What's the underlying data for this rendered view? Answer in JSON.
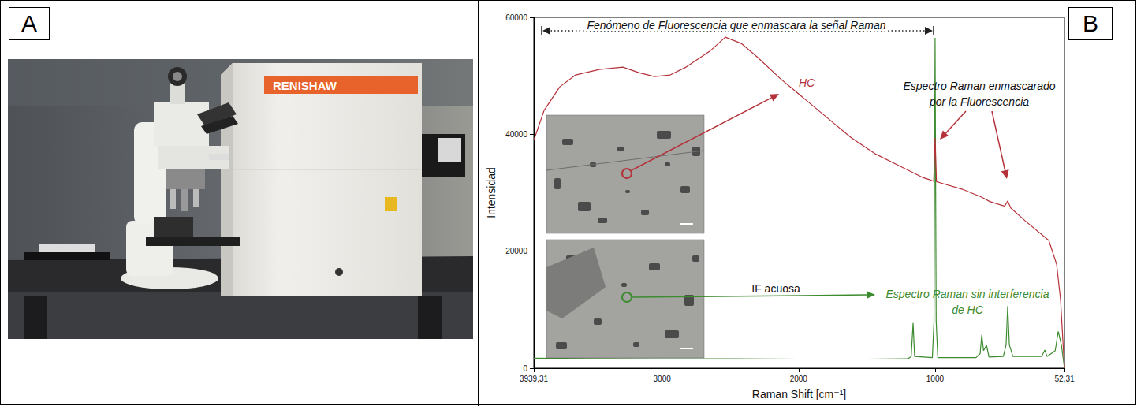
{
  "panel_labels": [
    "A",
    "B"
  ],
  "photo": {
    "brand": "RENISHAW"
  },
  "chart_data": {
    "type": "line",
    "x_label": "Raman Shift [cm⁻¹]",
    "y_label": "Intensidad",
    "xlim": [
      3939.31,
      52.31
    ],
    "xticks": [
      {
        "value": 3939.31,
        "label": "3939,31"
      },
      3000,
      2000,
      1000,
      {
        "value": 52.31,
        "label": "52,31"
      }
    ],
    "ylim": [
      0,
      60000
    ],
    "yticks": [
      0,
      20000,
      40000,
      60000
    ],
    "grid": false,
    "series": [
      {
        "name": "HC",
        "color": "#b5323a",
        "x": [
          3939.31,
          3864,
          3749,
          3633,
          3460,
          3287,
          3171,
          3056,
          2940,
          2824,
          2651,
          2536,
          2420,
          2305,
          2131,
          1958,
          1785,
          1612,
          1439,
          1266,
          1092,
          1035,
          1010,
          1000,
          990,
          960,
          800,
          660,
          600,
          490,
          468,
          446,
          340,
          167,
          110,
          81,
          52.31
        ],
        "values": [
          38960,
          44080,
          48120,
          50150,
          51090,
          51490,
          50550,
          49880,
          50150,
          51490,
          54190,
          56610,
          55540,
          53250,
          49470,
          46100,
          42730,
          39360,
          36660,
          34640,
          32620,
          32200,
          31950,
          39360,
          31900,
          31680,
          30600,
          29250,
          28500,
          27700,
          28600,
          27400,
          25200,
          21840,
          17790,
          11730,
          0
        ]
      },
      {
        "name": "IF acuosa",
        "color": "#3d8b2f",
        "x": [
          3939.31,
          3500,
          3000,
          2500,
          2000,
          1500,
          1200,
          1175,
          1161,
          1150,
          1020,
          1008,
          1000,
          992,
          980,
          700,
          670,
          658,
          645,
          623,
          605,
          500,
          480,
          468,
          456,
          430,
          220,
          196,
          180,
          120,
          98,
          75,
          52.31
        ],
        "values": [
          1700,
          1650,
          1600,
          1600,
          1550,
          1550,
          1600,
          2000,
          7700,
          2000,
          1800,
          8000,
          56500,
          8000,
          1800,
          1800,
          2500,
          5700,
          3000,
          3900,
          1900,
          2000,
          4000,
          10600,
          4000,
          2000,
          2000,
          3100,
          2000,
          3000,
          6300,
          4000,
          0
        ]
      }
    ],
    "annotations": {
      "fluorescence": "Fenómeno de Fluorescencia que enmascara la señal Raman",
      "masked": [
        "Espectro Raman enmascarado",
        "por la Fluorescencia"
      ],
      "clean": [
        "Espectro Raman sin interferencia",
        "de HC"
      ]
    }
  }
}
